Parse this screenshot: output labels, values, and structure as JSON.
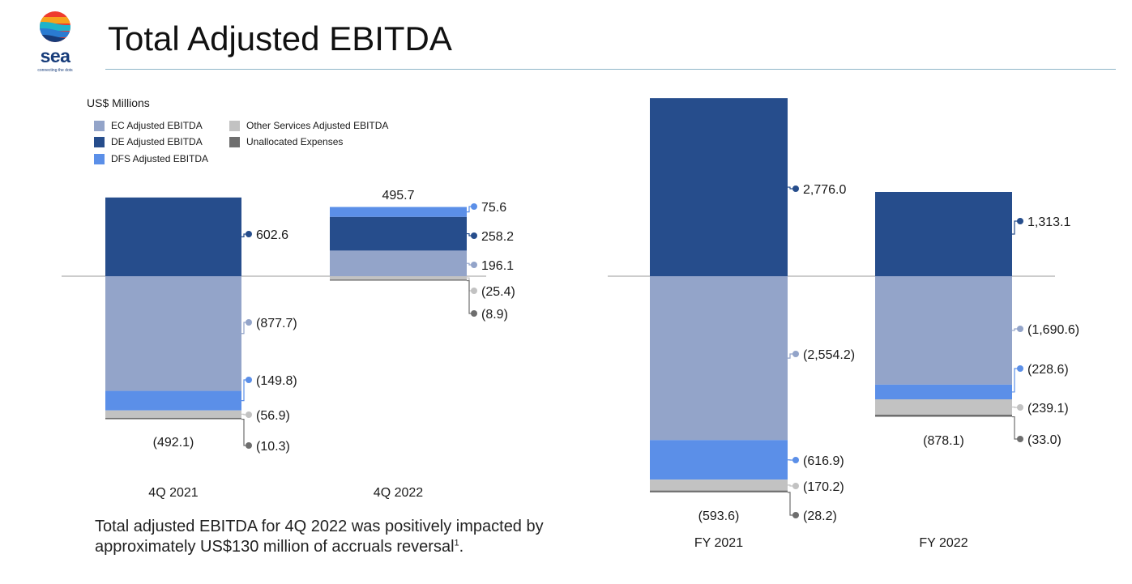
{
  "header": {
    "logo_word": "sea",
    "logo_tagline": "connecting the dots",
    "title": "Total Adjusted EBITDA"
  },
  "colors": {
    "ec": "#93a4c9",
    "de": "#264d8c",
    "dfs": "#5b8fe8",
    "other": "#c2c2c2",
    "unallocated": "#6e6e6e",
    "axis_line": "#9a9a9a"
  },
  "units_label": "US$ Millions",
  "legend": [
    {
      "key": "ec",
      "label": "EC Adjusted EBITDA"
    },
    {
      "key": "de",
      "label": "DE Adjusted EBITDA"
    },
    {
      "key": "dfs",
      "label": "DFS Adjusted EBITDA"
    },
    {
      "key": "other",
      "label": "Other Services Adjusted EBITDA"
    },
    {
      "key": "unallocated",
      "label": "Unallocated Expenses"
    }
  ],
  "footnote": {
    "text": "Total adjusted EBITDA for 4Q 2022 was positively impacted by approximately US$130 million of accruals reversal",
    "sup": "1",
    "end": "."
  },
  "chart_data": [
    {
      "type": "bar",
      "subtype": "stacked",
      "title": "",
      "categories": [
        "4Q 2021",
        "4Q 2022"
      ],
      "series": [
        {
          "name": "DFS Adjusted EBITDA",
          "key": "dfs",
          "values": [
            -149.8,
            75.6
          ],
          "labels": [
            "(149.8)",
            "75.6"
          ]
        },
        {
          "name": "DE Adjusted EBITDA",
          "key": "de",
          "values": [
            602.6,
            258.2
          ],
          "labels": [
            "602.6",
            "258.2"
          ]
        },
        {
          "name": "EC Adjusted EBITDA",
          "key": "ec",
          "values": [
            -877.7,
            196.1
          ],
          "labels": [
            "(877.7)",
            "196.1"
          ]
        },
        {
          "name": "Other Services Adjusted EBITDA",
          "key": "other",
          "values": [
            -56.9,
            -25.4
          ],
          "labels": [
            "(56.9)",
            "(25.4)"
          ]
        },
        {
          "name": "Unallocated Expenses",
          "key": "unallocated",
          "values": [
            -10.3,
            -8.9
          ],
          "labels": [
            "(10.3)",
            "(8.9)"
          ]
        }
      ],
      "totals": [
        -492.1,
        495.7
      ],
      "total_labels": [
        "(492.1)",
        "495.7"
      ]
    },
    {
      "type": "bar",
      "subtype": "stacked",
      "title": "",
      "categories": [
        "FY 2021",
        "FY 2022"
      ],
      "series": [
        {
          "name": "DFS Adjusted EBITDA",
          "key": "dfs",
          "values": [
            -616.9,
            -228.6
          ],
          "labels": [
            "(616.9)",
            "(228.6)"
          ]
        },
        {
          "name": "DE Adjusted EBITDA",
          "key": "de",
          "values": [
            2776.0,
            1313.1
          ],
          "labels": [
            "2,776.0",
            "1,313.1"
          ]
        },
        {
          "name": "EC Adjusted EBITDA",
          "key": "ec",
          "values": [
            -2554.2,
            -1690.6
          ],
          "labels": [
            "(2,554.2)",
            "(1,690.6)"
          ]
        },
        {
          "name": "Other Services Adjusted EBITDA",
          "key": "other",
          "values": [
            -170.2,
            -239.1
          ],
          "labels": [
            "(170.2)",
            "(239.1)"
          ]
        },
        {
          "name": "Unallocated Expenses",
          "key": "unallocated",
          "values": [
            -28.2,
            -33.0
          ],
          "labels": [
            "(28.2)",
            "(33.0)"
          ]
        }
      ],
      "totals": [
        -593.6,
        -878.1
      ],
      "total_labels": [
        "(593.6)",
        "(878.1)"
      ]
    }
  ]
}
